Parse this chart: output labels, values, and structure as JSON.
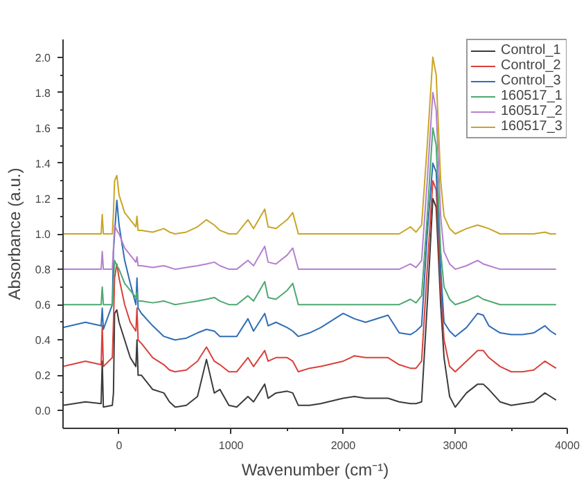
{
  "chart_data": {
    "type": "line",
    "xlabel": "Wavenumber (cm⁻¹)",
    "ylabel": "Absorbance (a.u.)",
    "x": [
      -500,
      -300,
      -160,
      -150,
      -140,
      -60,
      -50,
      -40,
      -20,
      0,
      50,
      100,
      150,
      160,
      170,
      200,
      300,
      400,
      450,
      500,
      600,
      700,
      780,
      850,
      900,
      980,
      1050,
      1150,
      1200,
      1300,
      1330,
      1400,
      1500,
      1550,
      1600,
      1700,
      1800,
      2000,
      2100,
      2200,
      2400,
      2500,
      2600,
      2650,
      2700,
      2750,
      2800,
      2830,
      2870,
      2900,
      2950,
      3000,
      3100,
      3200,
      3250,
      3300,
      3400,
      3500,
      3600,
      3700,
      3800,
      3850,
      3900
    ],
    "series": [
      {
        "name": "Control_1",
        "color": "#3a3a3a",
        "values": [
          0.03,
          0.05,
          0.04,
          0.28,
          0.02,
          0.03,
          0.1,
          0.55,
          0.57,
          0.5,
          0.4,
          0.3,
          0.25,
          0.4,
          0.2,
          0.2,
          0.12,
          0.1,
          0.05,
          0.02,
          0.03,
          0.08,
          0.29,
          0.1,
          0.12,
          0.03,
          0.02,
          0.08,
          0.05,
          0.15,
          0.07,
          0.1,
          0.11,
          0.1,
          0.03,
          0.03,
          0.04,
          0.07,
          0.08,
          0.07,
          0.07,
          0.05,
          0.04,
          0.04,
          0.05,
          0.6,
          1.2,
          1.15,
          0.6,
          0.3,
          0.08,
          0.02,
          0.1,
          0.15,
          0.15,
          0.12,
          0.05,
          0.03,
          0.04,
          0.05,
          0.1,
          0.08,
          0.06
        ]
      },
      {
        "name": "Control_2",
        "color": "#d9403a",
        "values": [
          0.25,
          0.28,
          0.26,
          0.48,
          0.25,
          0.3,
          0.5,
          0.75,
          0.83,
          0.75,
          0.6,
          0.5,
          0.45,
          0.58,
          0.4,
          0.38,
          0.3,
          0.26,
          0.23,
          0.22,
          0.23,
          0.28,
          0.36,
          0.28,
          0.26,
          0.22,
          0.22,
          0.3,
          0.25,
          0.34,
          0.28,
          0.3,
          0.3,
          0.28,
          0.22,
          0.24,
          0.25,
          0.28,
          0.31,
          0.3,
          0.3,
          0.26,
          0.24,
          0.24,
          0.28,
          0.8,
          1.3,
          1.25,
          0.7,
          0.4,
          0.25,
          0.22,
          0.28,
          0.34,
          0.34,
          0.3,
          0.25,
          0.22,
          0.22,
          0.23,
          0.28,
          0.26,
          0.24
        ]
      },
      {
        "name": "Control_3",
        "color": "#2f6db5",
        "values": [
          0.47,
          0.5,
          0.48,
          0.58,
          0.46,
          0.6,
          0.9,
          1.0,
          1.19,
          1.05,
          0.85,
          0.72,
          0.6,
          0.75,
          0.58,
          0.55,
          0.48,
          0.42,
          0.41,
          0.4,
          0.41,
          0.44,
          0.46,
          0.45,
          0.42,
          0.42,
          0.42,
          0.52,
          0.45,
          0.55,
          0.48,
          0.5,
          0.47,
          0.45,
          0.42,
          0.44,
          0.47,
          0.55,
          0.52,
          0.5,
          0.54,
          0.44,
          0.43,
          0.45,
          0.48,
          1.0,
          1.4,
          1.35,
          0.8,
          0.5,
          0.45,
          0.42,
          0.47,
          0.55,
          0.54,
          0.48,
          0.44,
          0.43,
          0.43,
          0.44,
          0.48,
          0.45,
          0.43
        ]
      },
      {
        "name": "160517_1",
        "color": "#4ca870",
        "values": [
          0.6,
          0.6,
          0.6,
          0.7,
          0.6,
          0.6,
          0.73,
          0.85,
          0.82,
          0.8,
          0.72,
          0.68,
          0.64,
          0.67,
          0.62,
          0.62,
          0.61,
          0.62,
          0.61,
          0.6,
          0.61,
          0.62,
          0.63,
          0.64,
          0.62,
          0.6,
          0.6,
          0.65,
          0.62,
          0.73,
          0.64,
          0.63,
          0.68,
          0.72,
          0.6,
          0.6,
          0.6,
          0.6,
          0.6,
          0.6,
          0.6,
          0.6,
          0.63,
          0.61,
          0.65,
          1.1,
          1.6,
          1.5,
          0.9,
          0.7,
          0.63,
          0.6,
          0.62,
          0.65,
          0.63,
          0.62,
          0.6,
          0.6,
          0.6,
          0.6,
          0.6,
          0.6,
          0.6
        ]
      },
      {
        "name": "160517_2",
        "color": "#b57fd0",
        "values": [
          0.8,
          0.8,
          0.8,
          0.9,
          0.8,
          0.8,
          0.92,
          1.05,
          1.02,
          1.0,
          0.92,
          0.88,
          0.84,
          0.87,
          0.82,
          0.82,
          0.81,
          0.82,
          0.81,
          0.8,
          0.81,
          0.82,
          0.83,
          0.84,
          0.82,
          0.8,
          0.8,
          0.85,
          0.82,
          0.93,
          0.84,
          0.83,
          0.88,
          0.92,
          0.8,
          0.8,
          0.8,
          0.8,
          0.8,
          0.8,
          0.8,
          0.8,
          0.83,
          0.81,
          0.85,
          1.3,
          1.8,
          1.7,
          1.1,
          0.9,
          0.83,
          0.8,
          0.82,
          0.85,
          0.83,
          0.82,
          0.8,
          0.8,
          0.8,
          0.8,
          0.8,
          0.8,
          0.8
        ]
      },
      {
        "name": "160517_3",
        "color": "#c9a524",
        "values": [
          1.0,
          1.0,
          1.0,
          1.11,
          1.0,
          1.0,
          1.12,
          1.3,
          1.33,
          1.22,
          1.12,
          1.08,
          1.04,
          1.1,
          1.02,
          1.02,
          1.01,
          1.03,
          1.01,
          1.0,
          1.01,
          1.04,
          1.08,
          1.05,
          1.02,
          1.0,
          1.0,
          1.08,
          1.03,
          1.14,
          1.04,
          1.03,
          1.08,
          1.12,
          1.0,
          1.0,
          1.0,
          1.0,
          1.0,
          1.0,
          1.0,
          1.0,
          1.04,
          1.01,
          1.05,
          1.5,
          2.0,
          1.9,
          1.3,
          1.1,
          1.03,
          1.0,
          1.03,
          1.05,
          1.04,
          1.03,
          1.0,
          1.0,
          1.0,
          1.0,
          1.01,
          1.0,
          1.0
        ]
      }
    ],
    "xlim": [
      -500,
      4000
    ],
    "ylim": [
      -0.1,
      2.1
    ],
    "xticks": [
      0,
      1000,
      2000,
      3000,
      4000
    ],
    "yticks": [
      {
        "value": 0,
        "label": "0.0"
      },
      {
        "value": 0.2,
        "label": "0.2"
      },
      {
        "value": 0.4,
        "label": "0.4"
      },
      {
        "value": 0.6,
        "label": "0.6"
      },
      {
        "value": 0.8,
        "label": "0.8"
      },
      {
        "value": 1.0,
        "label": "1.0"
      },
      {
        "value": 1.2,
        "label": "1.2"
      },
      {
        "value": 1.4,
        "label": "1.4"
      },
      {
        "value": 1.6,
        "label": "1.6"
      },
      {
        "value": 1.8,
        "label": "1.8"
      },
      {
        "value": 2.0,
        "label": "2.0"
      }
    ],
    "legend": "top right",
    "grid": false
  }
}
